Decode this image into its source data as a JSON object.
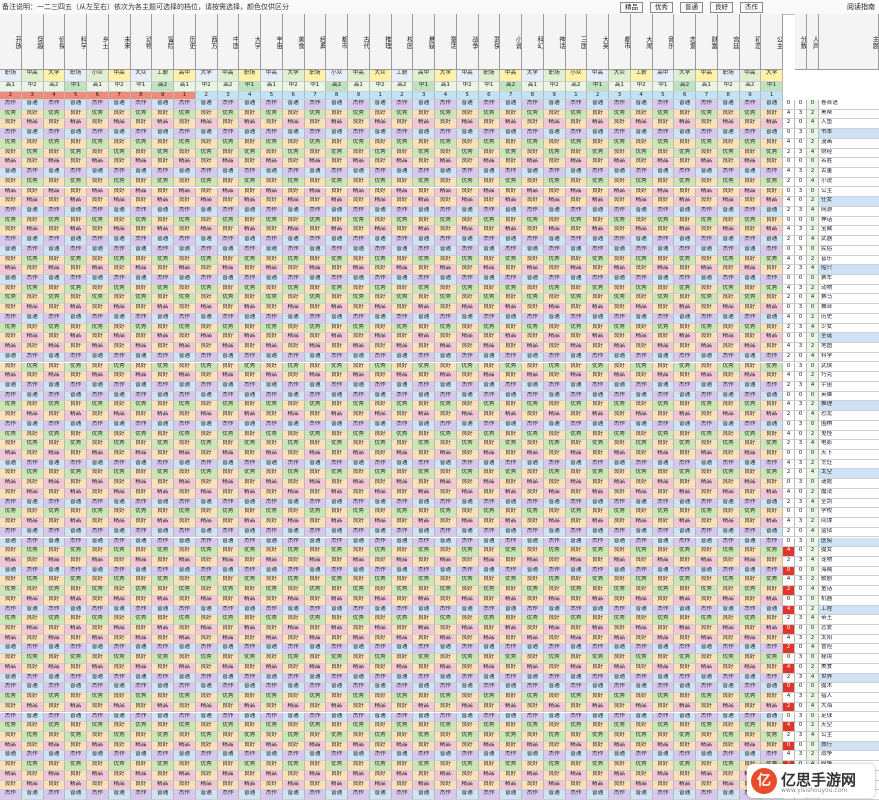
{
  "legend": {
    "note": "备注说明：一二三四五（从左至右）依次为各主题可选择的档位，请按需选择，颜色仅供区分",
    "items": [
      "精品",
      "优秀",
      "普通",
      "良好",
      "杰作"
    ],
    "title": "阅读指南"
  },
  "colors": {
    "精品": "#f3c6d6",
    "优秀": "#c9e6b4",
    "普通": "#cfe3f7",
    "良好": "#fbe0b8",
    "杰作": "#d8c7ee",
    "accent_red": "#e0352b",
    "accent_blue": "#4f8fd9"
  },
  "columns": [
    "主题",
    "人声",
    "分数",
    "公主",
    "初恋",
    "宫廷",
    "财富",
    "恋爱",
    "音乐",
    "大闹",
    "都市",
    "大英",
    "三国",
    "神话",
    "科幻",
    "小说",
    "武侠",
    "战争",
    "童话",
    "悬疑",
    "校园",
    "推理",
    "古代",
    "都市",
    "经典",
    "美食",
    "宇宙",
    "大学",
    "中国",
    "西方",
    "历史",
    "冒险",
    "动物",
    "未来",
    "乡土",
    "科学",
    "侦探",
    "穿越",
    "开放"
  ],
  "header_codes": [
    "大学",
    "中高",
    "职场",
    "中高",
    "大学",
    "高中",
    "工薪",
    "大众",
    "中高",
    "小众",
    "职场"
  ],
  "header_levels": [
    "中1",
    "高2",
    "中2",
    "高1",
    "高2",
    "中1",
    "中2",
    "高1"
  ],
  "row_labels": [
    "卷首语",
    "黑帮",
    "人鱼",
    "书本",
    "漫画",
    "财经",
    "名胜",
    "古董",
    "小说",
    "公主",
    "仕女",
    "网游",
    "神话",
    "宝藏",
    "武器",
    "民俗",
    "音乐",
    "船只",
    "赛车",
    "动物",
    "赛马",
    "舞台",
    "历史",
    "少女",
    "圣诞",
    "地图",
    "科学",
    "武侠",
    "巧克",
    "宇宙",
    "英雄",
    "推理",
    "恐龙",
    "围棋",
    "鬼怪",
    "电影",
    "天下",
    "烹饪",
    "太空",
    "谜题",
    "魔法",
    "圣剑",
    "学校",
    "间谍",
    "监狱",
    "医院",
    "魔女",
    "宠物",
    "海贼",
    "歌剧",
    "童话",
    "机器",
    "工程",
    "帝王",
    "恋爱",
    "太阳",
    "冒险",
    "秘境",
    "美食",
    "世界",
    "魔术",
    "猎人",
    "大海",
    "足球",
    "天空",
    "公主",
    "旅行",
    "战争",
    "纷争",
    "宠物",
    "学校",
    "世界"
  ],
  "cell_values": [
    "普通",
    "良好",
    "良好",
    "杰作",
    "精品",
    "优秀"
  ],
  "watermark": {
    "brand": "亿思手游网",
    "url": "www.yisishouyou.com"
  }
}
